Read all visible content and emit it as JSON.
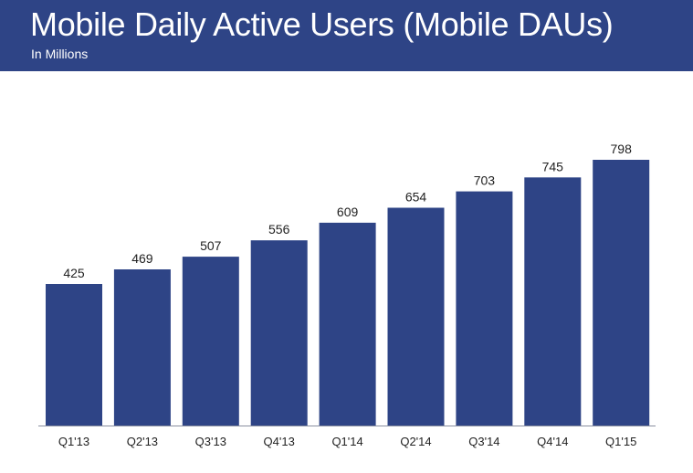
{
  "header": {
    "title": "Mobile Daily Active Users (Mobile DAUs)",
    "subtitle": "In Millions"
  },
  "colors": {
    "bar": "#2e4486",
    "header_bg": "#2e4486"
  },
  "chart_data": {
    "type": "bar",
    "title": "Mobile Daily Active Users (Mobile DAUs)",
    "subtitle": "In Millions",
    "categories": [
      "Q1'13",
      "Q2'13",
      "Q3'13",
      "Q4'13",
      "Q1'14",
      "Q2'14",
      "Q3'14",
      "Q4'14",
      "Q1'15"
    ],
    "values": [
      425,
      469,
      507,
      556,
      609,
      654,
      703,
      745,
      798
    ],
    "xlabel": "",
    "ylabel": "",
    "ylim": [
      0,
      798
    ],
    "grid": false,
    "legend": "none"
  }
}
